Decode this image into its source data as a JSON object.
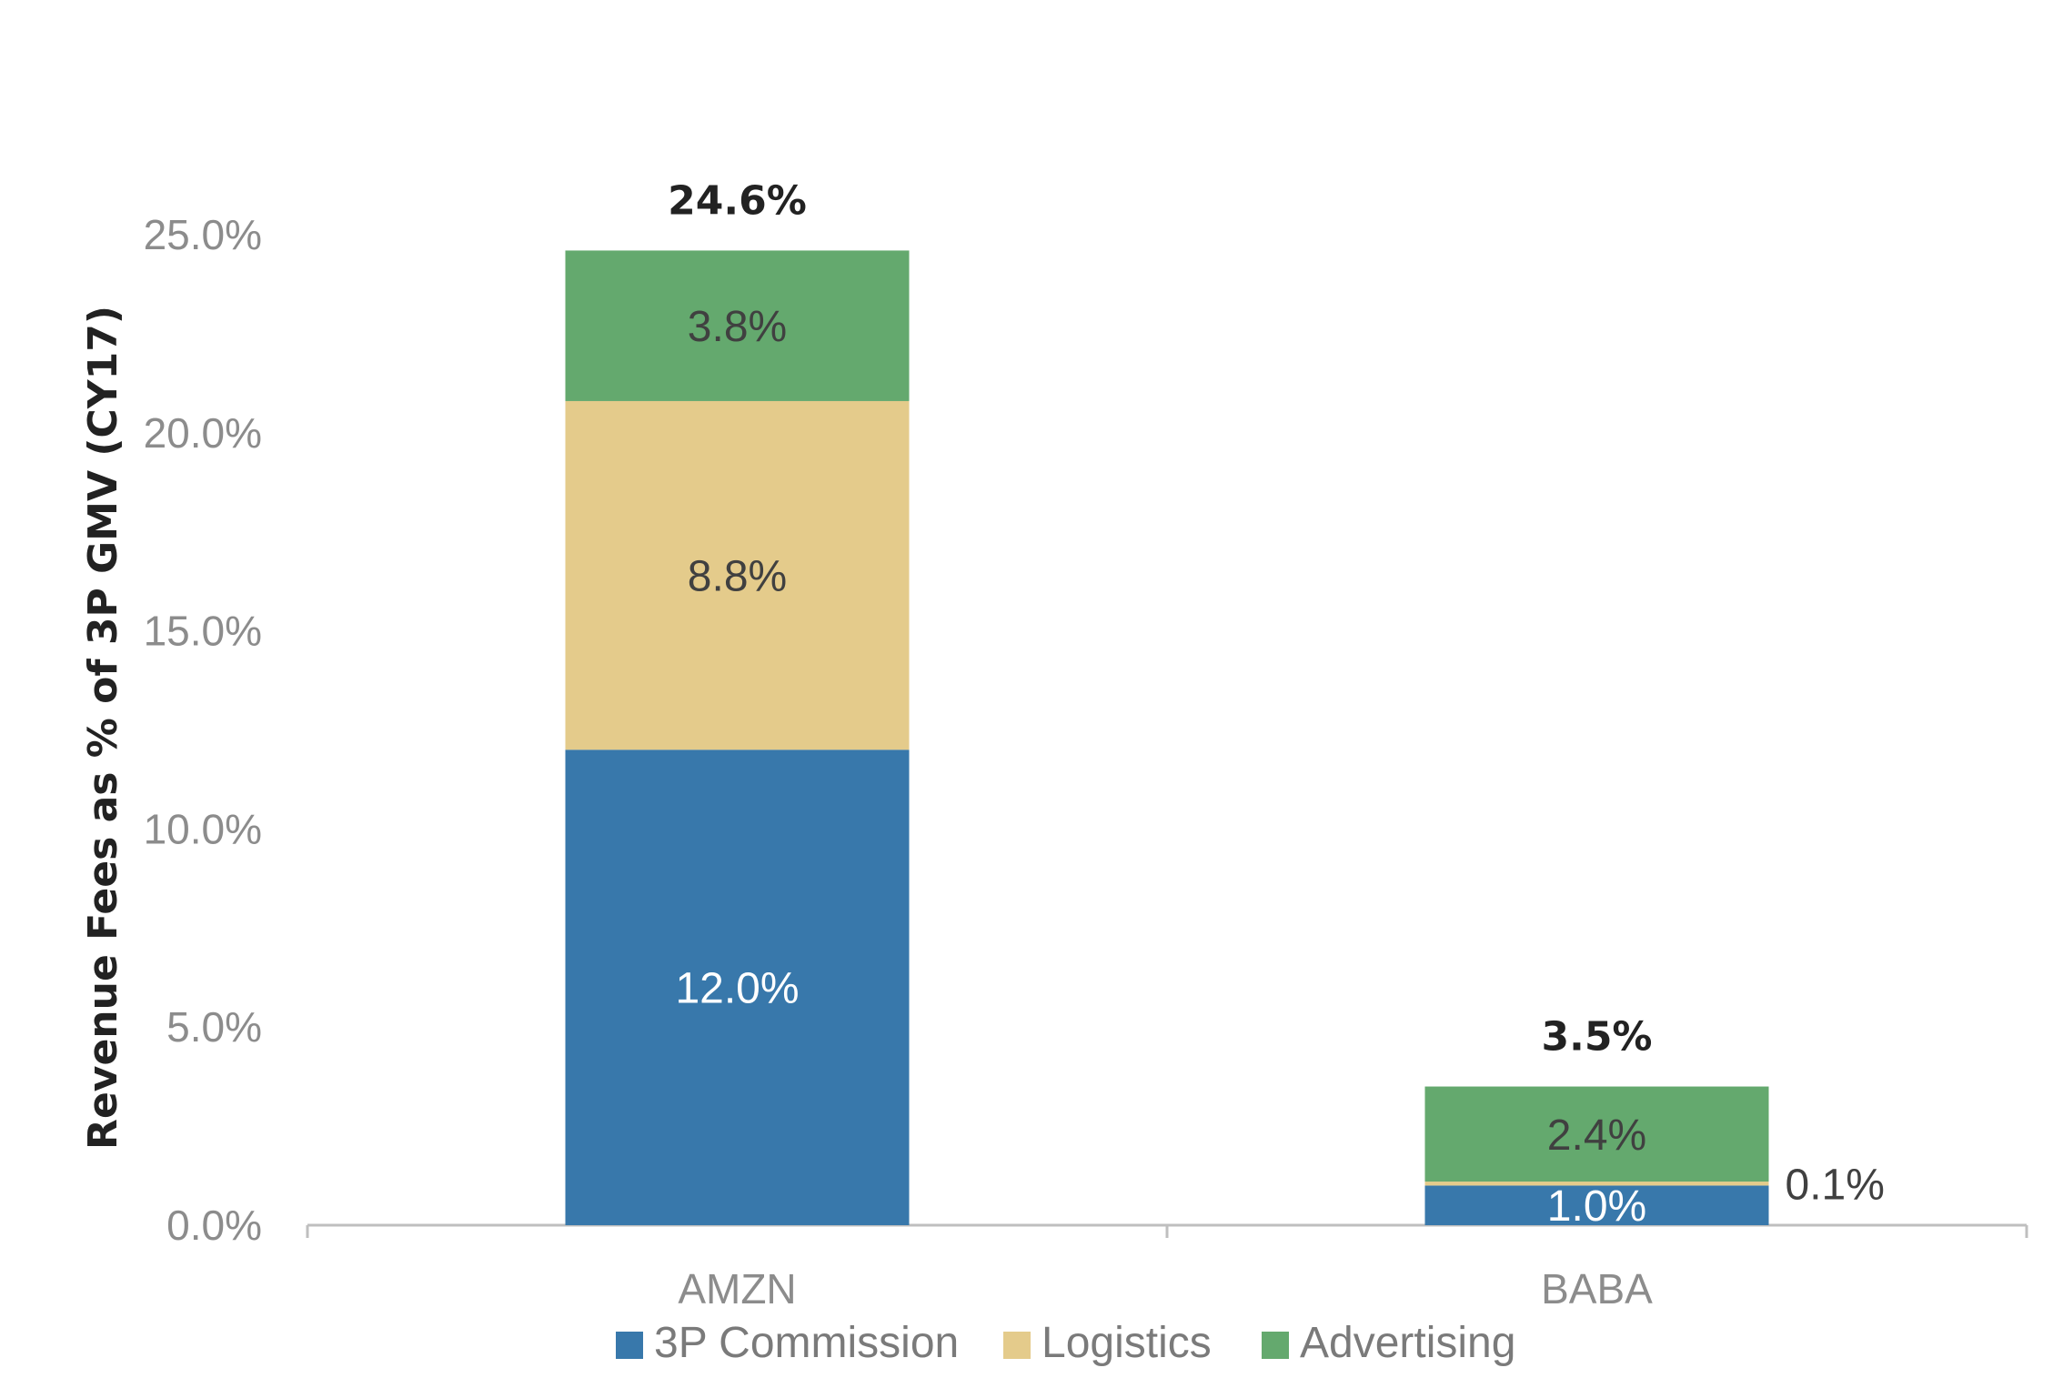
{
  "chart_data": {
    "type": "bar",
    "stacked": true,
    "title": "",
    "xlabel": "",
    "ylabel": "Revenue Fees as % of 3P GMV (CY17)",
    "ylim": [
      0,
      25
    ],
    "yticks": [
      "0.0%",
      "5.0%",
      "10.0%",
      "15.0%",
      "20.0%",
      "25.0%"
    ],
    "categories": [
      "AMZN",
      "BABA"
    ],
    "series": [
      {
        "name": "3P Commission",
        "values": [
          12.0,
          1.0
        ],
        "labels": [
          "12.0%",
          "1.0%"
        ],
        "color": "#3878ab"
      },
      {
        "name": "Logistics",
        "values": [
          8.8,
          0.1
        ],
        "labels": [
          "8.8%",
          "0.1%"
        ],
        "color": "#e4cb8b"
      },
      {
        "name": "Advertising",
        "values": [
          3.8,
          2.4
        ],
        "labels": [
          "3.8%",
          "2.4%"
        ],
        "color": "#64a96e"
      }
    ],
    "totals": [
      "24.6%",
      "3.5%"
    ],
    "legend": "bottom-center",
    "grid": false
  }
}
